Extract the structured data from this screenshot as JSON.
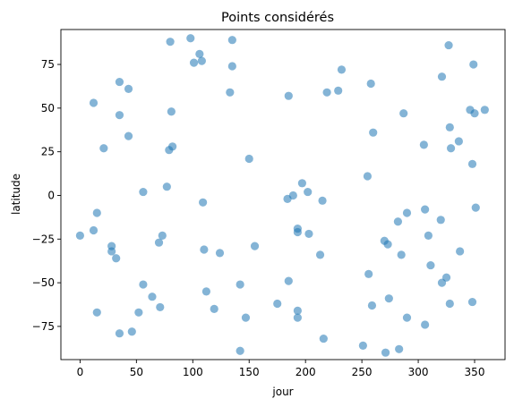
{
  "chart_data": {
    "type": "scatter",
    "title": "Points considérés",
    "xlabel": "jour",
    "ylabel": "latitude",
    "xlim": [
      -17,
      377
    ],
    "ylim": [
      -94,
      95
    ],
    "xticks": [
      0,
      50,
      100,
      150,
      200,
      250,
      300,
      350
    ],
    "yticks": [
      -75,
      -50,
      -25,
      0,
      25,
      50,
      75
    ],
    "grid": false,
    "marker_color": "#1f77b4",
    "marker_alpha": 0.55,
    "points": [
      {
        "x": 0,
        "y": -23
      },
      {
        "x": 12,
        "y": 53
      },
      {
        "x": 12,
        "y": -20
      },
      {
        "x": 15,
        "y": -10
      },
      {
        "x": 15,
        "y": -67
      },
      {
        "x": 21,
        "y": 27
      },
      {
        "x": 28,
        "y": -29
      },
      {
        "x": 28,
        "y": -32
      },
      {
        "x": 32,
        "y": -36
      },
      {
        "x": 35,
        "y": 65
      },
      {
        "x": 35,
        "y": 46
      },
      {
        "x": 35,
        "y": -79
      },
      {
        "x": 43,
        "y": 61
      },
      {
        "x": 43,
        "y": 34
      },
      {
        "x": 46,
        "y": -78
      },
      {
        "x": 52,
        "y": -67
      },
      {
        "x": 56,
        "y": 2
      },
      {
        "x": 56,
        "y": -51
      },
      {
        "x": 64,
        "y": -58
      },
      {
        "x": 70,
        "y": -27
      },
      {
        "x": 71,
        "y": -64
      },
      {
        "x": 73,
        "y": -23
      },
      {
        "x": 77,
        "y": 5
      },
      {
        "x": 79,
        "y": 26
      },
      {
        "x": 80,
        "y": 88
      },
      {
        "x": 81,
        "y": 48
      },
      {
        "x": 82,
        "y": 28
      },
      {
        "x": 98,
        "y": 90
      },
      {
        "x": 101,
        "y": 76
      },
      {
        "x": 106,
        "y": 81
      },
      {
        "x": 108,
        "y": 77
      },
      {
        "x": 109,
        "y": -4
      },
      {
        "x": 110,
        "y": -31
      },
      {
        "x": 112,
        "y": -55
      },
      {
        "x": 119,
        "y": -65
      },
      {
        "x": 124,
        "y": -33
      },
      {
        "x": 133,
        "y": 59
      },
      {
        "x": 135,
        "y": 89
      },
      {
        "x": 135,
        "y": 74
      },
      {
        "x": 142,
        "y": -51
      },
      {
        "x": 142,
        "y": -89
      },
      {
        "x": 147,
        "y": -70
      },
      {
        "x": 150,
        "y": 21
      },
      {
        "x": 155,
        "y": -29
      },
      {
        "x": 175,
        "y": -62
      },
      {
        "x": 184,
        "y": -2
      },
      {
        "x": 185,
        "y": 57
      },
      {
        "x": 185,
        "y": -49
      },
      {
        "x": 189,
        "y": 0
      },
      {
        "x": 193,
        "y": -19
      },
      {
        "x": 193,
        "y": -21
      },
      {
        "x": 193,
        "y": -66
      },
      {
        "x": 193,
        "y": -70
      },
      {
        "x": 197,
        "y": 7
      },
      {
        "x": 202,
        "y": 2
      },
      {
        "x": 203,
        "y": -22
      },
      {
        "x": 213,
        "y": -34
      },
      {
        "x": 215,
        "y": -3
      },
      {
        "x": 216,
        "y": -82
      },
      {
        "x": 219,
        "y": 59
      },
      {
        "x": 229,
        "y": 60
      },
      {
        "x": 232,
        "y": 72
      },
      {
        "x": 251,
        "y": -86
      },
      {
        "x": 255,
        "y": 11
      },
      {
        "x": 256,
        "y": -45
      },
      {
        "x": 258,
        "y": 64
      },
      {
        "x": 259,
        "y": -63
      },
      {
        "x": 260,
        "y": 36
      },
      {
        "x": 270,
        "y": -26
      },
      {
        "x": 271,
        "y": -90
      },
      {
        "x": 273,
        "y": -28
      },
      {
        "x": 274,
        "y": -59
      },
      {
        "x": 282,
        "y": -15
      },
      {
        "x": 283,
        "y": -88
      },
      {
        "x": 285,
        "y": -34
      },
      {
        "x": 287,
        "y": 47
      },
      {
        "x": 290,
        "y": -10
      },
      {
        "x": 290,
        "y": -70
      },
      {
        "x": 305,
        "y": 29
      },
      {
        "x": 306,
        "y": -8
      },
      {
        "x": 306,
        "y": -74
      },
      {
        "x": 309,
        "y": -23
      },
      {
        "x": 311,
        "y": -40
      },
      {
        "x": 320,
        "y": -14
      },
      {
        "x": 321,
        "y": 68
      },
      {
        "x": 321,
        "y": -50
      },
      {
        "x": 325,
        "y": -47
      },
      {
        "x": 327,
        "y": 86
      },
      {
        "x": 328,
        "y": 39
      },
      {
        "x": 328,
        "y": -62
      },
      {
        "x": 329,
        "y": 27
      },
      {
        "x": 336,
        "y": 31
      },
      {
        "x": 337,
        "y": -32
      },
      {
        "x": 346,
        "y": 49
      },
      {
        "x": 348,
        "y": 18
      },
      {
        "x": 348,
        "y": -61
      },
      {
        "x": 349,
        "y": 75
      },
      {
        "x": 350,
        "y": 47
      },
      {
        "x": 351,
        "y": -7
      },
      {
        "x": 359,
        "y": 49
      }
    ]
  }
}
